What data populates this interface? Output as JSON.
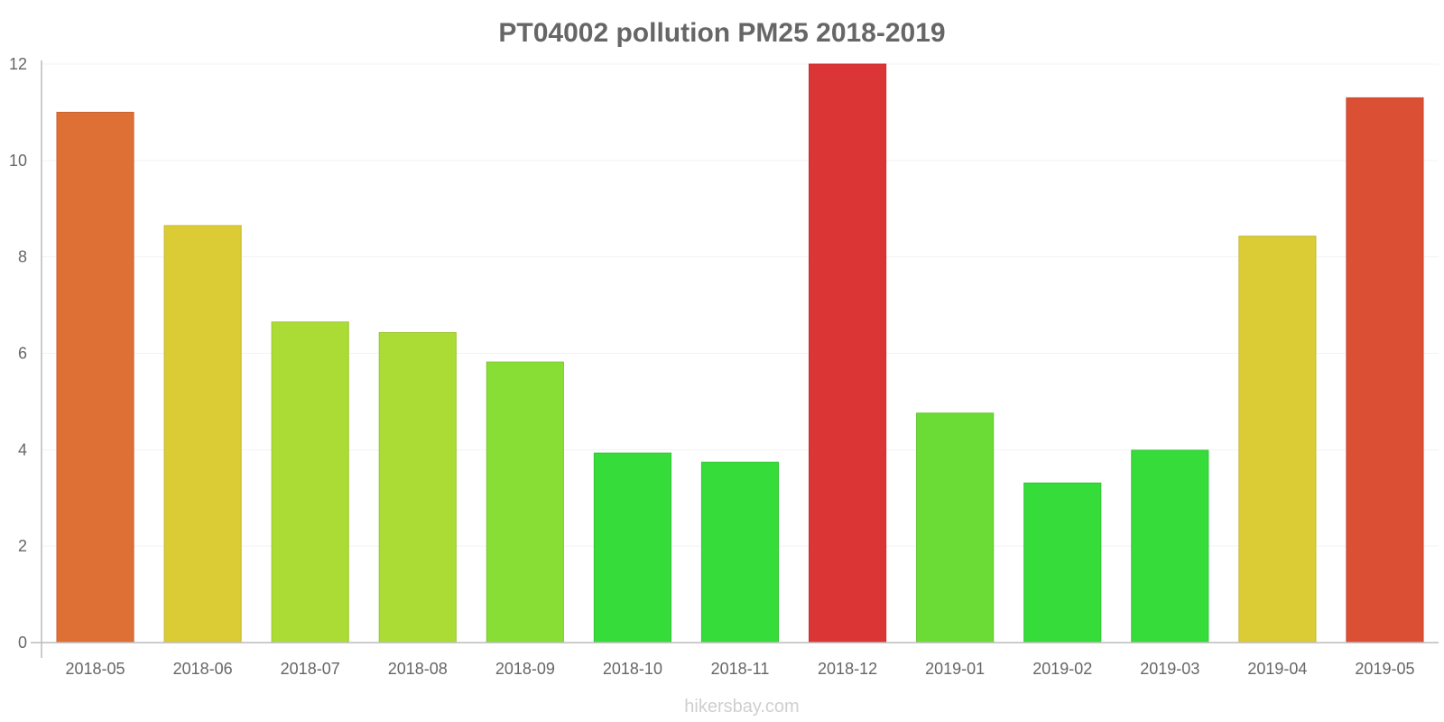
{
  "chart_data": {
    "type": "bar",
    "title": "PT04002 pollution PM25 2018-2019",
    "xlabel": "",
    "ylabel": "",
    "ylim": [
      0,
      12
    ],
    "yticks": [
      "0",
      "2",
      "4",
      "6",
      "8",
      "10",
      "12"
    ],
    "grid": true,
    "legend": "none",
    "categories": [
      "2018-05",
      "2018-06",
      "2018-07",
      "2018-08",
      "2018-09",
      "2018-10",
      "2018-11",
      "2018-12",
      "2019-01",
      "2019-02",
      "2019-03",
      "2019-04",
      "2019-05"
    ],
    "values": [
      11.0,
      8.65,
      6.65,
      6.43,
      5.82,
      3.93,
      3.74,
      12.0,
      4.76,
      3.31,
      3.99,
      8.43,
      11.3
    ],
    "colors": [
      "#de6f35",
      "#dbcc35",
      "#abdc35",
      "#abdc35",
      "#89de35",
      "#35dc3a",
      "#35dc3a",
      "#db3535",
      "#6bdc35",
      "#35dc3a",
      "#35dc3a",
      "#dbcc35",
      "#db4f35"
    ],
    "borders": [
      "#c86430",
      "#c5b830",
      "#9ac630",
      "#9ac630",
      "#7bc830",
      "#30c634",
      "#30c634",
      "#c53030",
      "#60c630",
      "#30c634",
      "#30c634",
      "#c5b830",
      "#c54730"
    ]
  },
  "watermark": "hikersbay.com"
}
